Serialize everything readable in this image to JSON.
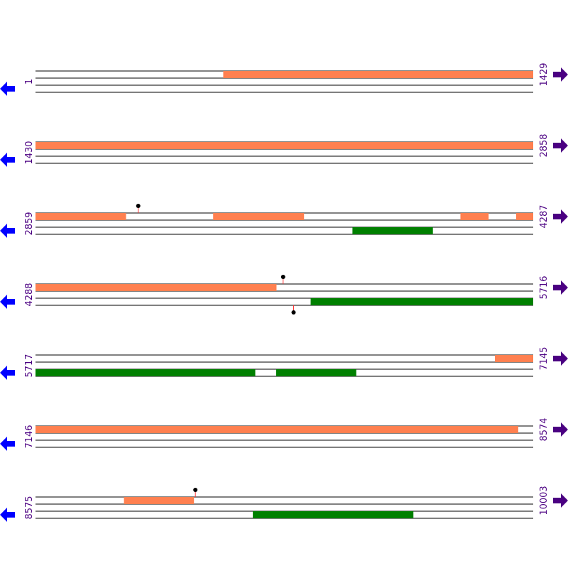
{
  "colors": {
    "forward_feature": "#ff8050",
    "reverse_feature": "#008000",
    "marker_stem": "#ff3030",
    "marker_head": "#000000",
    "track_line": "#000000",
    "left_arrow": "#0000ff",
    "right_arrow": "#4b0082",
    "position_label": "#4b0082"
  },
  "icons": {
    "left": "arrow-left-icon",
    "right": "arrow-right-icon"
  },
  "rows": [
    {
      "start": 1,
      "end": 1429,
      "start_label": "1",
      "end_label": "1429",
      "forward": [
        [
          540,
          1429
        ]
      ],
      "reverse": [],
      "markers_above": [],
      "markers_below": []
    },
    {
      "start": 1430,
      "end": 2858,
      "start_label": "1430",
      "end_label": "2858",
      "forward": [
        [
          1430,
          2858
        ]
      ],
      "reverse": [],
      "markers_above": [],
      "markers_below": []
    },
    {
      "start": 2859,
      "end": 4287,
      "start_label": "2859",
      "end_label": "4287",
      "forward": [
        [
          2859,
          3118
        ],
        [
          3369,
          3629
        ],
        [
          4079,
          4159
        ],
        [
          4239,
          4287
        ]
      ],
      "reverse": [
        [
          3769,
          3999
        ]
      ],
      "markers_above": [
        3154
      ],
      "markers_below": []
    },
    {
      "start": 4288,
      "end": 5716,
      "start_label": "4288",
      "end_label": "5716",
      "forward": [
        [
          4288,
          4979
        ]
      ],
      "reverse": [
        [
          5078,
          5716
        ]
      ],
      "markers_above": [
        4999
      ],
      "markers_below": [
        5029
      ]
    },
    {
      "start": 5717,
      "end": 7145,
      "start_label": "5717",
      "end_label": "7145",
      "forward": [
        [
          7036,
          7145
        ]
      ],
      "reverse": [
        [
          5717,
          6347
        ],
        [
          6408,
          6637
        ]
      ],
      "markers_above": [],
      "markers_below": []
    },
    {
      "start": 7146,
      "end": 8574,
      "start_label": "7146",
      "end_label": "8574",
      "forward": [
        [
          7146,
          8531
        ]
      ],
      "reverse": [],
      "markers_above": [],
      "markers_below": []
    },
    {
      "start": 8575,
      "end": 10003,
      "start_label": "8575",
      "end_label": "10003",
      "forward": [
        [
          8829,
          9029
        ]
      ],
      "reverse": [
        [
          9199,
          9659
        ]
      ],
      "markers_above": [
        9034
      ],
      "markers_below": []
    }
  ]
}
